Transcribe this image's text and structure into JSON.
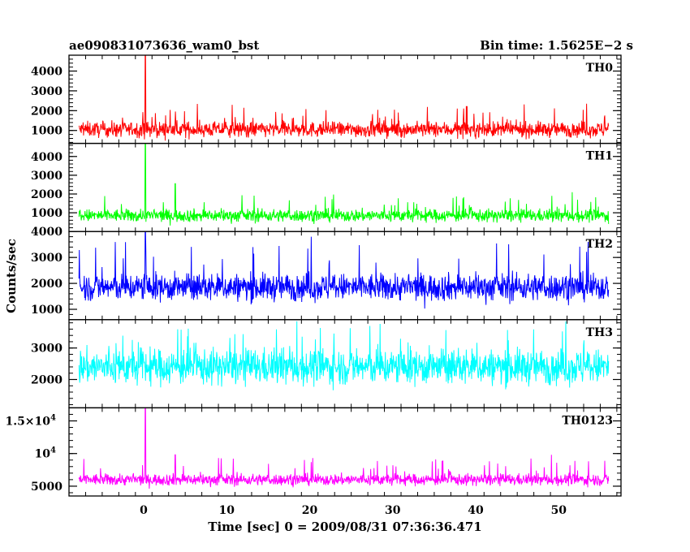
{
  "header": {
    "title": "ae090831073636_wam0_bst",
    "bin_time": "Bin time: 1.5625E−2 s"
  },
  "chart_data": {
    "type": "line",
    "xlabel": "Time [sec] 0 = 2009/08/31 07:36:36.471",
    "ylabel": "Counts/sec",
    "xlim": [
      -9,
      57.5
    ],
    "x_ticks": [
      "0",
      "10",
      "20",
      "30",
      "40",
      "50"
    ],
    "x_tick_values": [
      0,
      10,
      20,
      30,
      40,
      50
    ],
    "data_x_range": [
      -7.8,
      56
    ],
    "bin_time_s": 0.015625,
    "panels": [
      {
        "name": "TH0",
        "color": "#ff0000",
        "ylim": [
          350,
          4800
        ],
        "y_ticks": [
          {
            "v": 1000,
            "t": "1000"
          },
          {
            "v": 2000,
            "t": "2000"
          },
          {
            "v": 3000,
            "t": "3000"
          },
          {
            "v": 4000,
            "t": "4000"
          }
        ],
        "baseline": 1050,
        "spread": 480,
        "floor": 420,
        "peak_max": 2350,
        "spikes": [
          {
            "x": 0.2,
            "y": 4800
          }
        ]
      },
      {
        "name": "TH1",
        "color": "#00ff00",
        "ylim": [
          0,
          4700
        ],
        "y_ticks": [
          {
            "v": 1000,
            "t": "1000"
          },
          {
            "v": 2000,
            "t": "2000"
          },
          {
            "v": 3000,
            "t": "3000"
          },
          {
            "v": 4000,
            "t": "4000"
          }
        ],
        "baseline": 850,
        "spread": 420,
        "floor": 250,
        "peak_max": 2100,
        "spikes": [
          {
            "x": 0.2,
            "y": 4700
          },
          {
            "x": 3.8,
            "y": 2550
          }
        ]
      },
      {
        "name": "TH2",
        "color": "#0000ff",
        "ylim": [
          600,
          4000
        ],
        "y_ticks": [
          {
            "v": 1000,
            "t": "1000"
          },
          {
            "v": 2000,
            "t": "2000"
          },
          {
            "v": 3000,
            "t": "3000"
          },
          {
            "v": 4000,
            "t": "4000"
          }
        ],
        "baseline": 1850,
        "spread": 650,
        "floor": 850,
        "peak_max": 3800,
        "spikes": [
          {
            "x": 0.2,
            "y": 4000
          }
        ]
      },
      {
        "name": "TH3",
        "color": "#00ffff",
        "ylim": [
          1100,
          3900
        ],
        "y_ticks": [
          {
            "v": 2000,
            "t": "2000"
          },
          {
            "v": 3000,
            "t": "3000"
          }
        ],
        "baseline": 2400,
        "spread": 700,
        "floor": 1200,
        "peak_max": 3850,
        "spikes": []
      },
      {
        "name": "TH0123",
        "color": "#ff00ff",
        "ylim": [
          3500,
          17000
        ],
        "y_ticks": [
          {
            "v": 5000,
            "t": "5000"
          },
          {
            "v": 10000,
            "t": "10",
            "sup": "4"
          },
          {
            "v": 15000,
            "t": "1.5×10",
            "sup": "4"
          }
        ],
        "baseline": 6000,
        "spread": 1100,
        "floor": 4200,
        "peak_max": 9800,
        "spikes": [
          {
            "x": 0.2,
            "y": 17000
          },
          {
            "x": 3.8,
            "y": 9800
          },
          {
            "x": 9.0,
            "y": 9300
          }
        ]
      }
    ]
  }
}
